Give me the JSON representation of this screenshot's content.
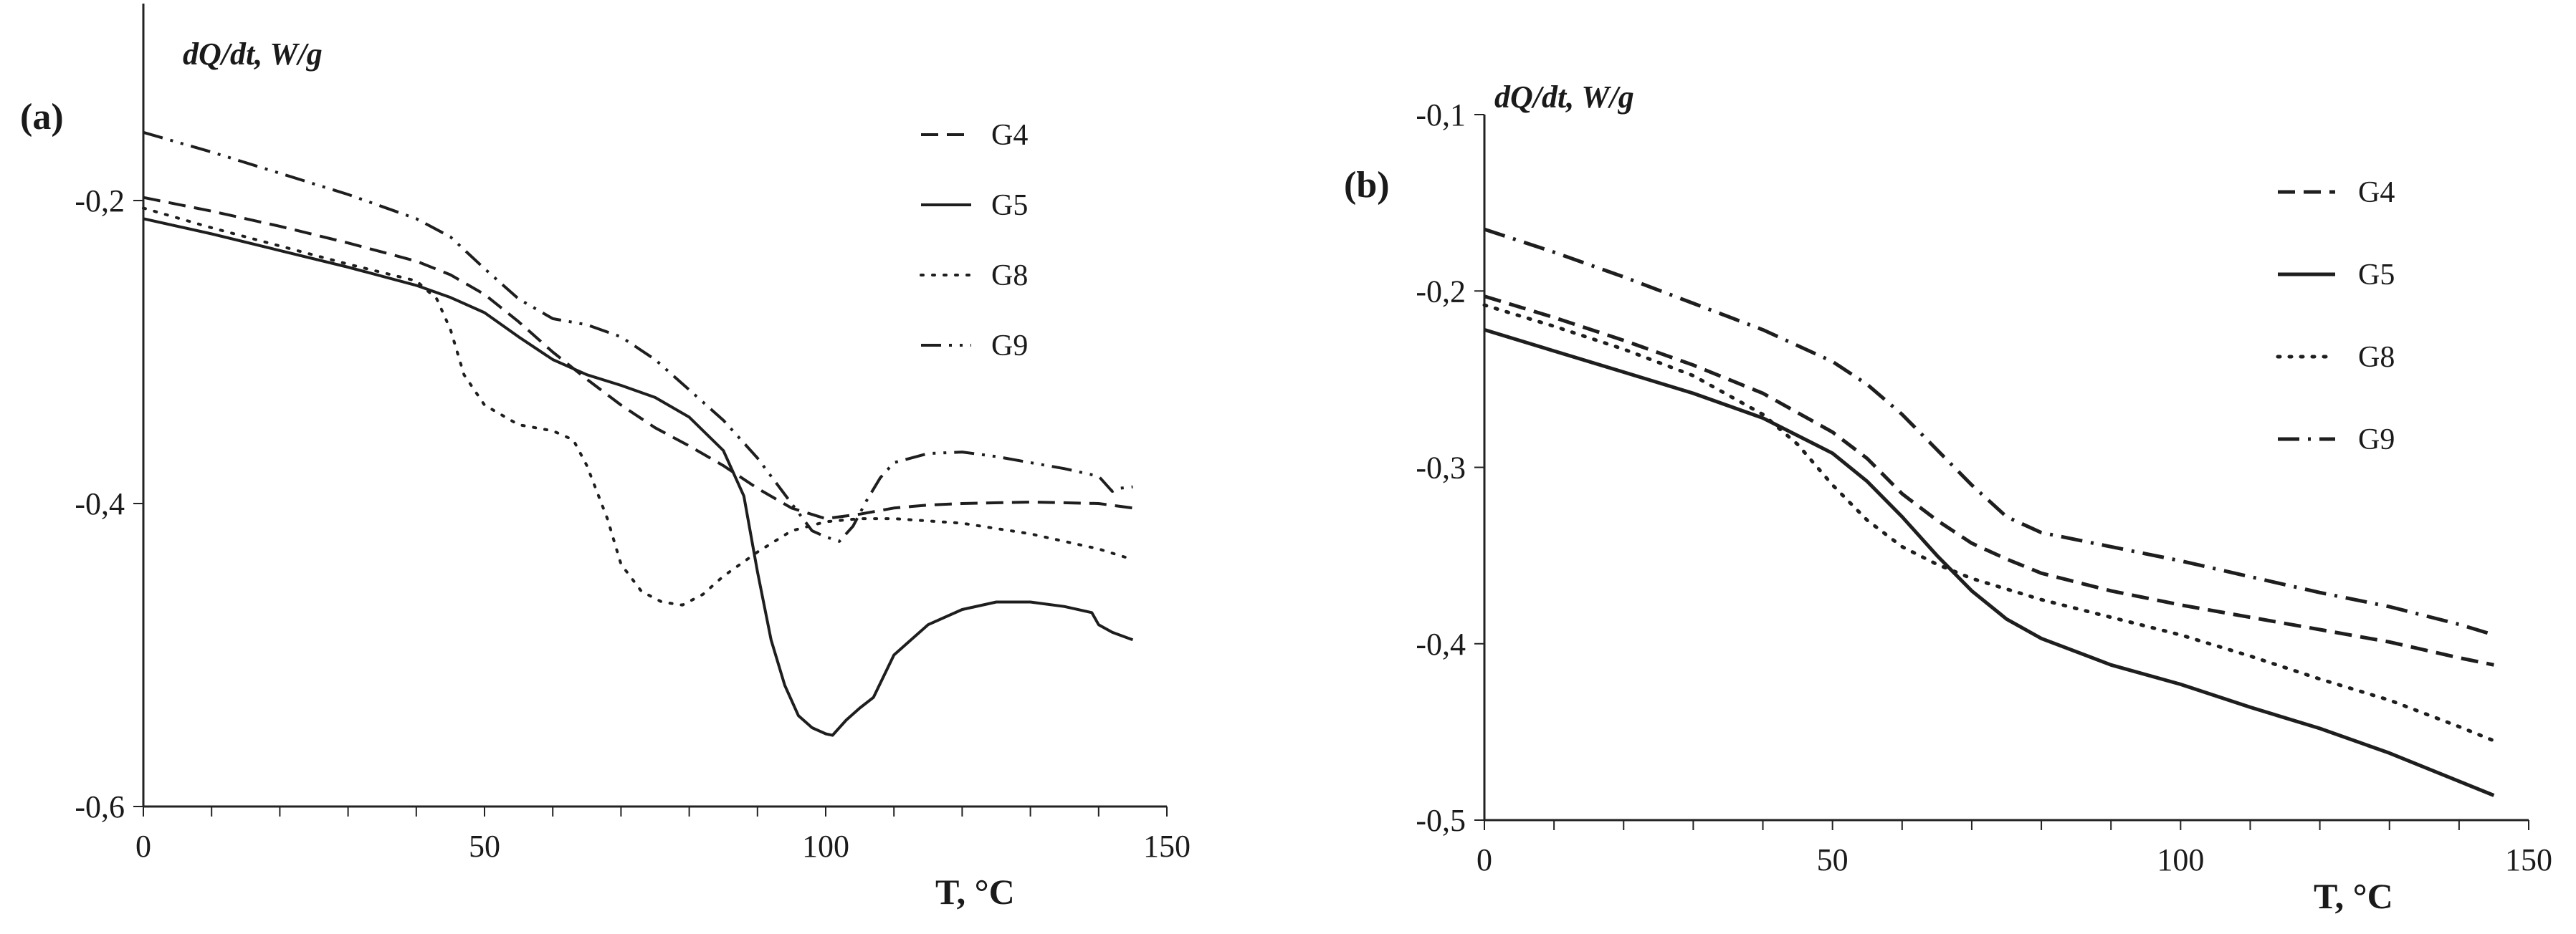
{
  "chart_data": [
    {
      "type": "line",
      "panel_label": "(a)",
      "ylabel": "dQ/dt, W/g",
      "xlabel": "T, °C",
      "xlim": [
        0,
        150
      ],
      "ylim": [
        -0.6,
        -0.07
      ],
      "xticks": [
        "0",
        "50",
        "100",
        "150"
      ],
      "xtick_values": [
        0,
        50,
        100,
        150
      ],
      "yticks": [
        "-0,2",
        "-0,4",
        "-0,6"
      ],
      "ytick_values": [
        -0.2,
        -0.4,
        -0.6
      ],
      "legend_position": "top-right",
      "series": [
        {
          "name": "G4",
          "dash": "dash",
          "points": [
            [
              0,
              -0.198
            ],
            [
              10,
              -0.207
            ],
            [
              20,
              -0.217
            ],
            [
              30,
              -0.228
            ],
            [
              40,
              -0.24
            ],
            [
              45,
              -0.249
            ],
            [
              50,
              -0.262
            ],
            [
              55,
              -0.28
            ],
            [
              60,
              -0.3
            ],
            [
              65,
              -0.318
            ],
            [
              70,
              -0.335
            ],
            [
              75,
              -0.35
            ],
            [
              80,
              -0.362
            ],
            [
              85,
              -0.375
            ],
            [
              90,
              -0.39
            ],
            [
              95,
              -0.403
            ],
            [
              100,
              -0.41
            ],
            [
              105,
              -0.407
            ],
            [
              110,
              -0.403
            ],
            [
              115,
              -0.401
            ],
            [
              120,
              -0.4
            ],
            [
              130,
              -0.399
            ],
            [
              140,
              -0.4
            ],
            [
              145,
              -0.403
            ]
          ]
        },
        {
          "name": "G5",
          "dash": "solid",
          "points": [
            [
              0,
              -0.212
            ],
            [
              10,
              -0.222
            ],
            [
              20,
              -0.233
            ],
            [
              30,
              -0.244
            ],
            [
              40,
              -0.256
            ],
            [
              45,
              -0.264
            ],
            [
              50,
              -0.274
            ],
            [
              55,
              -0.29
            ],
            [
              60,
              -0.305
            ],
            [
              65,
              -0.315
            ],
            [
              70,
              -0.322
            ],
            [
              75,
              -0.33
            ],
            [
              80,
              -0.343
            ],
            [
              85,
              -0.365
            ],
            [
              88,
              -0.395
            ],
            [
              90,
              -0.445
            ],
            [
              92,
              -0.49
            ],
            [
              94,
              -0.52
            ],
            [
              96,
              -0.54
            ],
            [
              98,
              -0.548
            ],
            [
              100,
              -0.552
            ],
            [
              101,
              -0.553
            ],
            [
              103,
              -0.543
            ],
            [
              105,
              -0.535
            ],
            [
              107,
              -0.528
            ],
            [
              110,
              -0.5
            ],
            [
              115,
              -0.48
            ],
            [
              120,
              -0.47
            ],
            [
              125,
              -0.465
            ],
            [
              130,
              -0.465
            ],
            [
              135,
              -0.468
            ],
            [
              139,
              -0.472
            ],
            [
              140,
              -0.48
            ],
            [
              142,
              -0.485
            ],
            [
              145,
              -0.49
            ]
          ]
        },
        {
          "name": "G8",
          "dash": "dot",
          "points": [
            [
              0,
              -0.205
            ],
            [
              10,
              -0.218
            ],
            [
              20,
              -0.23
            ],
            [
              30,
              -0.242
            ],
            [
              40,
              -0.253
            ],
            [
              43,
              -0.265
            ],
            [
              45,
              -0.285
            ],
            [
              47,
              -0.315
            ],
            [
              50,
              -0.335
            ],
            [
              55,
              -0.348
            ],
            [
              60,
              -0.352
            ],
            [
              63,
              -0.358
            ],
            [
              65,
              -0.375
            ],
            [
              68,
              -0.41
            ],
            [
              70,
              -0.44
            ],
            [
              73,
              -0.458
            ],
            [
              76,
              -0.465
            ],
            [
              79,
              -0.467
            ],
            [
              82,
              -0.46
            ],
            [
              85,
              -0.448
            ],
            [
              90,
              -0.432
            ],
            [
              95,
              -0.418
            ],
            [
              100,
              -0.412
            ],
            [
              105,
              -0.41
            ],
            [
              110,
              -0.41
            ],
            [
              120,
              -0.413
            ],
            [
              130,
              -0.42
            ],
            [
              140,
              -0.43
            ],
            [
              145,
              -0.437
            ]
          ]
        },
        {
          "name": "G9",
          "dash": "dashdotdot",
          "points": [
            [
              0,
              -0.155
            ],
            [
              10,
              -0.168
            ],
            [
              20,
              -0.182
            ],
            [
              30,
              -0.196
            ],
            [
              40,
              -0.212
            ],
            [
              45,
              -0.224
            ],
            [
              50,
              -0.245
            ],
            [
              55,
              -0.265
            ],
            [
              60,
              -0.278
            ],
            [
              65,
              -0.282
            ],
            [
              70,
              -0.29
            ],
            [
              75,
              -0.305
            ],
            [
              80,
              -0.325
            ],
            [
              85,
              -0.345
            ],
            [
              90,
              -0.37
            ],
            [
              95,
              -0.4
            ],
            [
              98,
              -0.418
            ],
            [
              100,
              -0.422
            ],
            [
              102,
              -0.425
            ],
            [
              104,
              -0.415
            ],
            [
              106,
              -0.398
            ],
            [
              108,
              -0.383
            ],
            [
              110,
              -0.373
            ],
            [
              115,
              -0.367
            ],
            [
              120,
              -0.366
            ],
            [
              125,
              -0.369
            ],
            [
              130,
              -0.373
            ],
            [
              135,
              -0.377
            ],
            [
              140,
              -0.382
            ],
            [
              142,
              -0.392
            ],
            [
              143,
              -0.39
            ],
            [
              145,
              -0.389
            ]
          ]
        }
      ]
    },
    {
      "type": "line",
      "panel_label": "(b)",
      "ylabel": "dQ/dt,  W/g",
      "xlabel": "T, °C",
      "xlim": [
        0,
        150
      ],
      "ylim": [
        -0.5,
        -0.1
      ],
      "xticks": [
        "0",
        "50",
        "100",
        "150"
      ],
      "xtick_values": [
        0,
        50,
        100,
        150
      ],
      "yticks": [
        "-0,1",
        "-0,2",
        "-0,3",
        "-0,4",
        "-0,5"
      ],
      "ytick_values": [
        -0.1,
        -0.2,
        -0.3,
        -0.4,
        -0.5
      ],
      "legend_position": "top-right",
      "series": [
        {
          "name": "G4",
          "dash": "dash",
          "points": [
            [
              0,
              -0.203
            ],
            [
              10,
              -0.215
            ],
            [
              20,
              -0.228
            ],
            [
              30,
              -0.242
            ],
            [
              40,
              -0.258
            ],
            [
              50,
              -0.28
            ],
            [
              55,
              -0.295
            ],
            [
              60,
              -0.315
            ],
            [
              65,
              -0.33
            ],
            [
              70,
              -0.343
            ],
            [
              75,
              -0.352
            ],
            [
              80,
              -0.36
            ],
            [
              90,
              -0.37
            ],
            [
              100,
              -0.378
            ],
            [
              110,
              -0.385
            ],
            [
              120,
              -0.392
            ],
            [
              130,
              -0.399
            ],
            [
              140,
              -0.408
            ],
            [
              145,
              -0.412
            ]
          ]
        },
        {
          "name": "G5",
          "dash": "solid",
          "points": [
            [
              0,
              -0.222
            ],
            [
              10,
              -0.234
            ],
            [
              20,
              -0.246
            ],
            [
              30,
              -0.258
            ],
            [
              40,
              -0.272
            ],
            [
              50,
              -0.292
            ],
            [
              55,
              -0.308
            ],
            [
              60,
              -0.328
            ],
            [
              65,
              -0.35
            ],
            [
              70,
              -0.37
            ],
            [
              75,
              -0.386
            ],
            [
              80,
              -0.397
            ],
            [
              90,
              -0.412
            ],
            [
              100,
              -0.423
            ],
            [
              110,
              -0.436
            ],
            [
              120,
              -0.448
            ],
            [
              130,
              -0.462
            ],
            [
              140,
              -0.478
            ],
            [
              145,
              -0.486
            ]
          ]
        },
        {
          "name": "G8",
          "dash": "dot",
          "points": [
            [
              0,
              -0.208
            ],
            [
              10,
              -0.22
            ],
            [
              20,
              -0.233
            ],
            [
              30,
              -0.248
            ],
            [
              40,
              -0.27
            ],
            [
              45,
              -0.287
            ],
            [
              50,
              -0.31
            ],
            [
              55,
              -0.33
            ],
            [
              60,
              -0.345
            ],
            [
              65,
              -0.355
            ],
            [
              70,
              -0.363
            ],
            [
              80,
              -0.375
            ],
            [
              90,
              -0.385
            ],
            [
              100,
              -0.395
            ],
            [
              110,
              -0.407
            ],
            [
              120,
              -0.42
            ],
            [
              130,
              -0.432
            ],
            [
              140,
              -0.447
            ],
            [
              145,
              -0.455
            ]
          ]
        },
        {
          "name": "G9",
          "dash": "dashdot",
          "points": [
            [
              0,
              -0.165
            ],
            [
              10,
              -0.178
            ],
            [
              20,
              -0.192
            ],
            [
              30,
              -0.207
            ],
            [
              40,
              -0.222
            ],
            [
              50,
              -0.24
            ],
            [
              55,
              -0.253
            ],
            [
              60,
              -0.27
            ],
            [
              65,
              -0.29
            ],
            [
              70,
              -0.31
            ],
            [
              75,
              -0.328
            ],
            [
              80,
              -0.337
            ],
            [
              90,
              -0.345
            ],
            [
              100,
              -0.353
            ],
            [
              110,
              -0.362
            ],
            [
              120,
              -0.371
            ],
            [
              130,
              -0.379
            ],
            [
              140,
              -0.389
            ],
            [
              145,
              -0.395
            ]
          ]
        }
      ]
    }
  ]
}
